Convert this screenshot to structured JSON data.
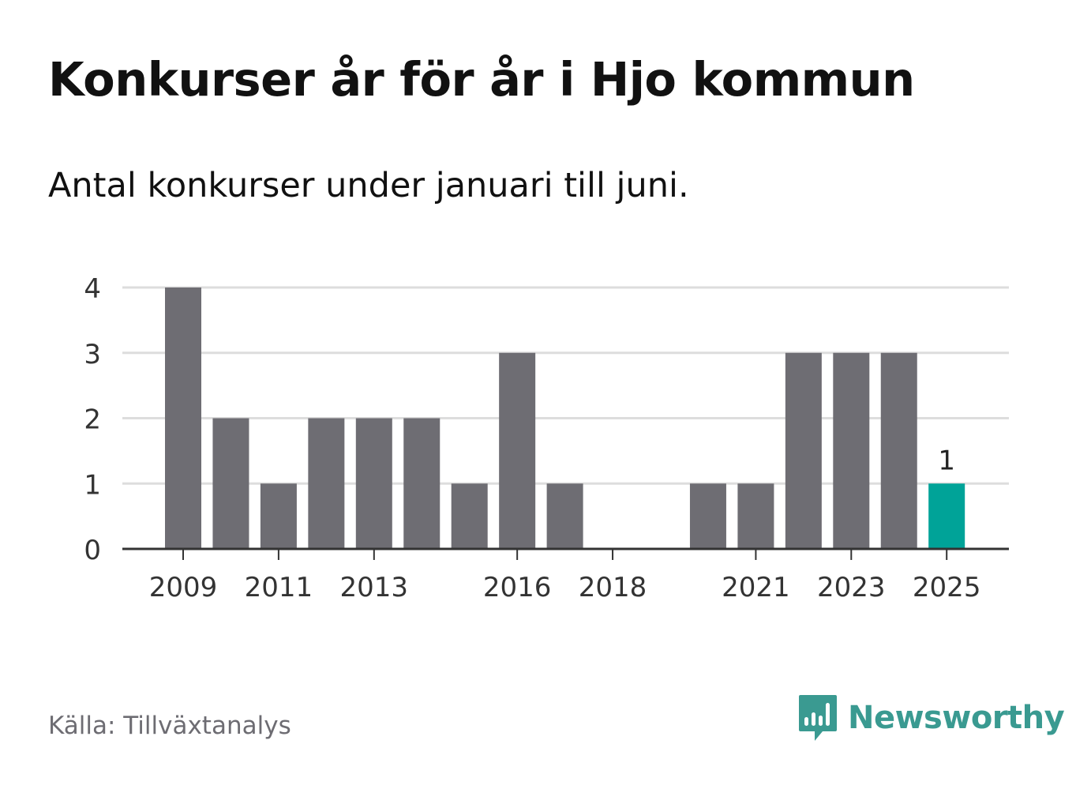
{
  "header": {
    "title": "Konkurser år för år i Hjo kommun",
    "subtitle": "Antal konkurser under januari till juni."
  },
  "footer": {
    "source": "Källa: Tillväxtanalys",
    "brand": "Newsworthy"
  },
  "colors": {
    "bar": "#6e6d73",
    "highlight": "#00a398",
    "grid": "#dddddd",
    "axis": "#333333",
    "brand": "#3a9a91"
  },
  "icons": {
    "brand_logo": "newsworthy-bar-chart-speech-bubble-icon"
  },
  "chart_data": {
    "type": "bar",
    "categories": [
      "2009",
      "2010",
      "2011",
      "2012",
      "2013",
      "2014",
      "2015",
      "2016",
      "2017",
      "2018",
      "2019",
      "2020",
      "2021",
      "2022",
      "2023",
      "2024",
      "2025"
    ],
    "values": [
      4,
      2,
      1,
      2,
      2,
      2,
      1,
      3,
      1,
      0,
      0,
      1,
      1,
      3,
      3,
      3,
      1
    ],
    "highlight_index": 16,
    "data_labels": [
      {
        "index": 16,
        "text": "1"
      }
    ],
    "x_tick_labels": [
      "2009",
      "2011",
      "2013",
      "2016",
      "2018",
      "2021",
      "2023",
      "2025"
    ],
    "y_ticks": [
      0,
      1,
      2,
      3,
      4
    ],
    "ylim": [
      0,
      4
    ],
    "grid": true,
    "legend": "none",
    "title": "Konkurser år för år i Hjo kommun",
    "subtitle": "Antal konkurser under januari till juni.",
    "xlabel": "",
    "ylabel": ""
  }
}
